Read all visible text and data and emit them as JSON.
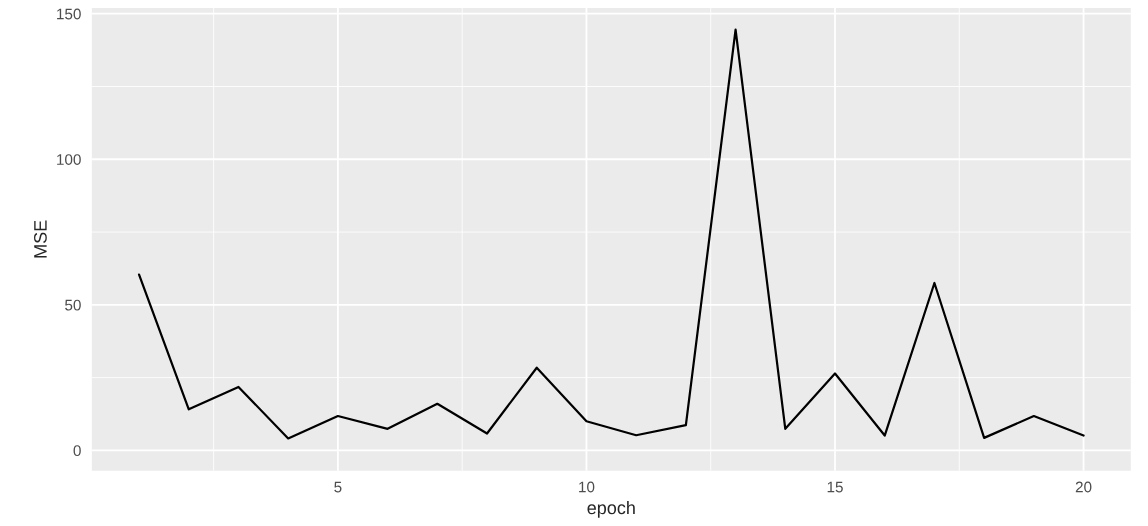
{
  "chart_data": {
    "type": "line",
    "xlabel": "epoch",
    "ylabel": "MSE",
    "x": [
      1,
      2,
      3,
      4,
      5,
      6,
      7,
      8,
      9,
      10,
      11,
      12,
      13,
      14,
      15,
      16,
      17,
      18,
      19,
      20
    ],
    "series": [
      {
        "color": "#000000",
        "values": [
          60.4,
          14.1,
          21.8,
          4.1,
          11.8,
          7.4,
          16,
          5.8,
          28.4,
          10,
          5.2,
          8.7,
          144.5,
          7.4,
          26.4,
          5.1,
          57.5,
          4.3,
          11.8,
          5.1
        ]
      }
    ],
    "xlim": [
      0.05,
      20.95
    ],
    "xticks": [
      5,
      10,
      15,
      20
    ],
    "ylim": [
      -7,
      152
    ],
    "yticks": [
      0,
      50,
      100,
      150
    ],
    "grid": true,
    "legend": false,
    "marker": "none",
    "line_style": "solid"
  }
}
